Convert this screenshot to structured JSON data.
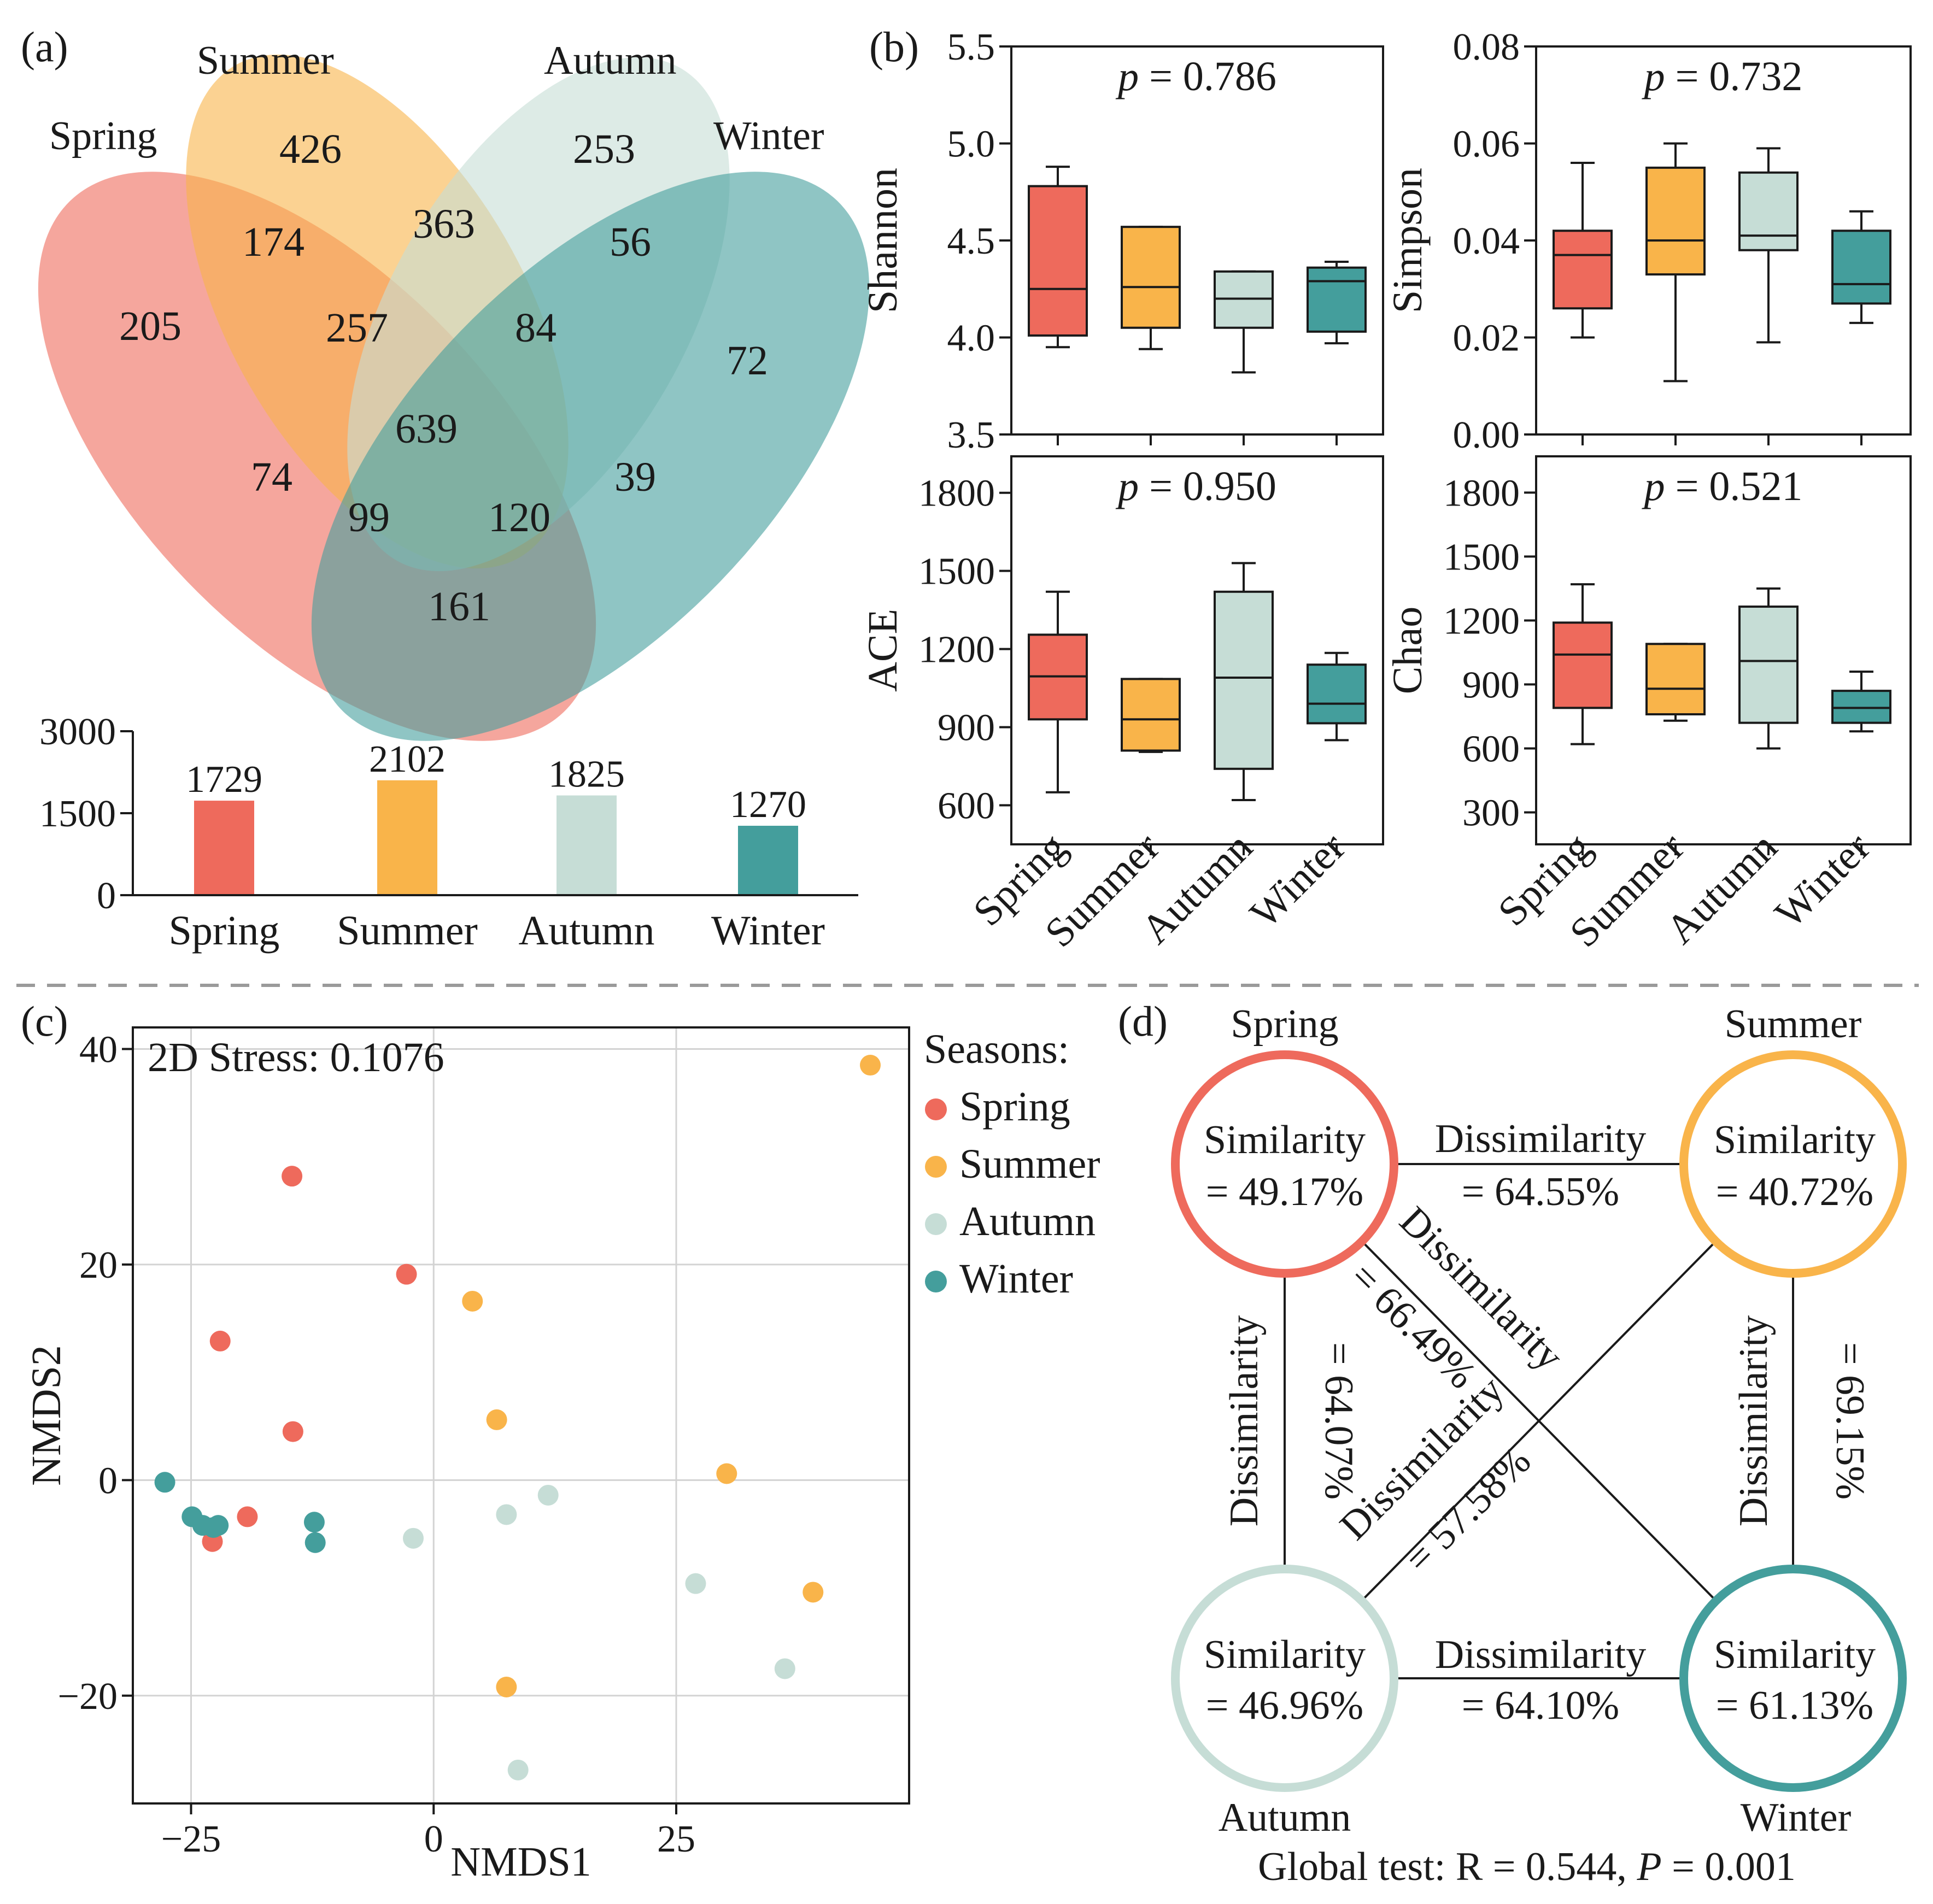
{
  "seasons": [
    "Spring",
    "Summer",
    "Autumn",
    "Winter"
  ],
  "colors": {
    "Spring": "#ee6a5c",
    "Summer": "#f9b44a",
    "Autumn": "#c6ddd6",
    "Winter": "#449e9c",
    "axis": "#1a1a1a",
    "grid": "#d3d3d3",
    "divider": "#9a9a9a"
  },
  "panel_a": {
    "label": "(a)",
    "venn": {
      "set_labels": [
        "Spring",
        "Summer",
        "Autumn",
        "Winter"
      ],
      "counts": {
        "spring_only": 205,
        "summer_only": 426,
        "autumn_only": 253,
        "winter_only": 72,
        "spring_summer": 174,
        "summer_autumn": 363,
        "autumn_winter": 56,
        "spring_summer_autumn": 257,
        "summer_autumn_winter": 84,
        "all_four": 639,
        "spring_autumn": 74,
        "spring_autumn_winter": 99,
        "spring_summer_winter": 120,
        "summer_winter": 39,
        "spring_winter": 161
      }
    },
    "bar_chart": {
      "type": "bar",
      "categories": [
        "Spring",
        "Summer",
        "Autumn",
        "Winter"
      ],
      "values": [
        1729,
        2102,
        1825,
        1270
      ],
      "value_labels": [
        "1729",
        "2102",
        "1825",
        "1270"
      ],
      "yticks": [
        "0",
        "1500",
        "3000"
      ],
      "ylim": [
        0,
        3000
      ]
    }
  },
  "panel_b": {
    "label": "(b)",
    "x_categories": [
      "Spring",
      "Summer",
      "Autumn",
      "Winter"
    ]
  },
  "panel_c": {
    "label": "(c)",
    "stress_text": "2D Stress: 0.1076",
    "xlabel": "NMDS1",
    "ylabel": "NMDS2",
    "xticks": [
      "−25",
      "0",
      "25"
    ],
    "yticks": [
      "−20",
      "0",
      "20",
      "40"
    ],
    "legend_title": "Seasons:",
    "legend_items": [
      "Spring",
      "Summer",
      "Autumn",
      "Winter"
    ]
  },
  "panel_d": {
    "label": "(d)",
    "nodes": [
      {
        "name": "Spring",
        "sim_label": "Similarity",
        "sim_value": "= 49.17%"
      },
      {
        "name": "Summer",
        "sim_label": "Similarity",
        "sim_value": "= 40.72%"
      },
      {
        "name": "Autumn",
        "sim_label": "Similarity",
        "sim_value": "= 46.96%"
      },
      {
        "name": "Winter",
        "sim_label": "Similarity",
        "sim_value": "= 61.13%"
      }
    ],
    "edges": {
      "spring_summer": {
        "label": "Dissimilarity",
        "value": "= 64.55%"
      },
      "autumn_winter": {
        "label": "Dissimilarity",
        "value": "= 64.10%"
      },
      "spring_autumn": {
        "label": "Dissimilarity",
        "value": "= 64.07%"
      },
      "summer_winter": {
        "label": "Dissimilarity",
        "value": "= 69.15%"
      },
      "spring_winter": {
        "label": "Dissimilarity",
        "value": "= 66.49%"
      },
      "summer_autumn": {
        "label": "Dissimilarity",
        "value": "= 57.58%"
      }
    },
    "global_test": {
      "prefix": "Global test: R = 0.544, ",
      "p_symbol": "P",
      "suffix": " = 0.001"
    }
  },
  "chart_data": [
    {
      "type": "bar",
      "title": "",
      "categories": [
        "Spring",
        "Summer",
        "Autumn",
        "Winter"
      ],
      "values": [
        1729,
        2102,
        1825,
        1270
      ],
      "xlabel": "",
      "ylabel": "",
      "ylim": [
        0,
        3000
      ]
    },
    {
      "type": "box",
      "ylabel": "Shannon",
      "annotation": {
        "p_symbol": "p",
        "p_text": " = 0.786"
      },
      "categories": [
        "Spring",
        "Summer",
        "Autumn",
        "Winter"
      ],
      "ylim": [
        3.5,
        5.5
      ],
      "yticks": [
        3.5,
        4.0,
        4.5,
        5.0,
        5.5
      ],
      "ytick_labels": [
        "3.5",
        "4.0",
        "4.5",
        "5.0",
        "5.5"
      ],
      "boxes": [
        {
          "min": 3.95,
          "q1": 4.01,
          "median": 4.25,
          "q3": 4.78,
          "max": 4.88
        },
        {
          "min": 3.94,
          "q1": 4.05,
          "median": 4.26,
          "q3": 4.57,
          "max": 4.57
        },
        {
          "min": 3.82,
          "q1": 4.05,
          "median": 4.2,
          "q3": 4.34,
          "max": 4.34
        },
        {
          "min": 3.97,
          "q1": 4.03,
          "median": 4.29,
          "q3": 4.36,
          "max": 4.39
        }
      ]
    },
    {
      "type": "box",
      "ylabel": "Simpson",
      "annotation": {
        "p_symbol": "p",
        "p_text": " = 0.732"
      },
      "categories": [
        "Spring",
        "Summer",
        "Autumn",
        "Winter"
      ],
      "ylim": [
        0.0,
        0.08
      ],
      "yticks": [
        0.0,
        0.02,
        0.04,
        0.06,
        0.08
      ],
      "ytick_labels": [
        "0.00",
        "0.02",
        "0.04",
        "0.06",
        "0.08"
      ],
      "boxes": [
        {
          "min": 0.02,
          "q1": 0.026,
          "median": 0.037,
          "q3": 0.042,
          "max": 0.056
        },
        {
          "min": 0.011,
          "q1": 0.033,
          "median": 0.04,
          "q3": 0.055,
          "max": 0.06
        },
        {
          "min": 0.019,
          "q1": 0.038,
          "median": 0.041,
          "q3": 0.054,
          "max": 0.059
        },
        {
          "min": 0.023,
          "q1": 0.027,
          "median": 0.031,
          "q3": 0.042,
          "max": 0.046
        }
      ]
    },
    {
      "type": "box",
      "ylabel": "ACE",
      "annotation": {
        "p_symbol": "p",
        "p_text": " = 0.950"
      },
      "categories": [
        "Spring",
        "Summer",
        "Autumn",
        "Winter"
      ],
      "ylim": [
        450,
        1940
      ],
      "yticks": [
        600,
        900,
        1200,
        1500,
        1800
      ],
      "ytick_labels": [
        "600",
        "900",
        "1200",
        "1500",
        "1800"
      ],
      "boxes": [
        {
          "min": 650,
          "q1": 930,
          "median": 1095,
          "q3": 1255,
          "max": 1420
        },
        {
          "min": 805,
          "q1": 810,
          "median": 930,
          "q3": 1085,
          "max": 1085
        },
        {
          "min": 620,
          "q1": 740,
          "median": 1090,
          "q3": 1420,
          "max": 1530
        },
        {
          "min": 850,
          "q1": 915,
          "median": 990,
          "q3": 1140,
          "max": 1185
        }
      ]
    },
    {
      "type": "box",
      "ylabel": "Chao",
      "annotation": {
        "p_symbol": "p",
        "p_text": " = 0.521"
      },
      "categories": [
        "Spring",
        "Summer",
        "Autumn",
        "Winter"
      ],
      "ylim": [
        150,
        1970
      ],
      "yticks": [
        300,
        600,
        900,
        1200,
        1500,
        1800
      ],
      "ytick_labels": [
        "300",
        "600",
        "900",
        "1200",
        "1500",
        "1800"
      ],
      "boxes": [
        {
          "min": 620,
          "q1": 790,
          "median": 1040,
          "q3": 1190,
          "max": 1370
        },
        {
          "min": 730,
          "q1": 760,
          "median": 880,
          "q3": 1090,
          "max": 1090
        },
        {
          "min": 600,
          "q1": 720,
          "median": 1010,
          "q3": 1265,
          "max": 1350
        },
        {
          "min": 680,
          "q1": 720,
          "median": 790,
          "q3": 870,
          "max": 960
        }
      ]
    },
    {
      "type": "scatter",
      "title": "",
      "xlabel": "NMDS1",
      "ylabel": "NMDS2",
      "xlim": [
        -31,
        49
      ],
      "ylim": [
        -30,
        42
      ],
      "xticks": [
        -25,
        0,
        25
      ],
      "yticks": [
        -20,
        0,
        20,
        40
      ],
      "annotation": "2D Stress: 0.1076",
      "series": [
        {
          "name": "Spring",
          "points": [
            [
              -14.6,
              28.2
            ],
            [
              -2.8,
              19.1
            ],
            [
              -22.0,
              12.9
            ],
            [
              -14.5,
              4.5
            ],
            [
              -19.2,
              -3.4
            ],
            [
              -22.8,
              -5.7
            ]
          ]
        },
        {
          "name": "Summer",
          "points": [
            [
              45.0,
              38.5
            ],
            [
              4.0,
              16.6
            ],
            [
              6.5,
              5.6
            ],
            [
              30.2,
              0.6
            ],
            [
              39.1,
              -10.4
            ],
            [
              7.5,
              -19.2
            ]
          ]
        },
        {
          "name": "Autumn",
          "points": [
            [
              -2.1,
              -5.4
            ],
            [
              7.5,
              -3.2
            ],
            [
              11.8,
              -1.4
            ],
            [
              27.0,
              -9.6
            ],
            [
              36.2,
              -17.5
            ],
            [
              8.7,
              -26.9
            ]
          ]
        },
        {
          "name": "Winter",
          "points": [
            [
              -27.7,
              -0.2
            ],
            [
              -24.9,
              -3.4
            ],
            [
              -23.8,
              -4.2
            ],
            [
              -22.7,
              -4.4
            ],
            [
              -22.2,
              -4.2
            ],
            [
              -12.3,
              -3.9
            ],
            [
              -12.2,
              -5.8
            ]
          ]
        }
      ]
    }
  ]
}
